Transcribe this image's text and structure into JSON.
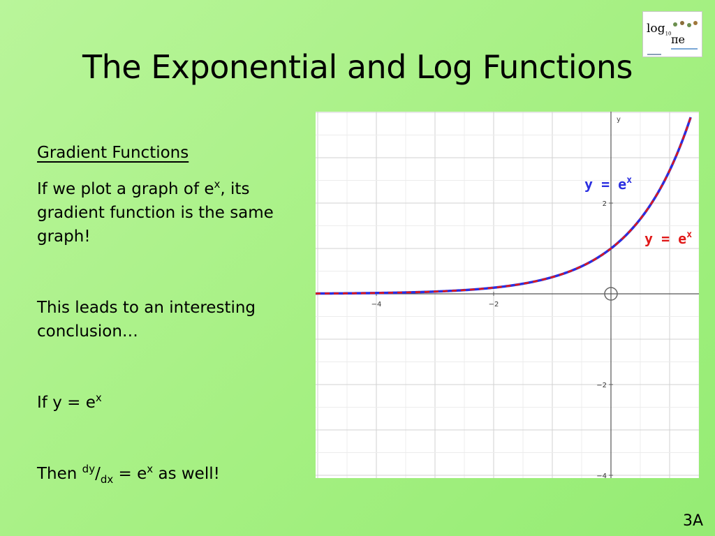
{
  "slide": {
    "title": "The Exponential and Log Functions",
    "page_number": "3A"
  },
  "logo": {
    "log_text": "log",
    "log_base": "10",
    "pi_e_text": "πe"
  },
  "content": {
    "heading": "Gradient Functions",
    "para1": {
      "before": "If we plot a graph of e",
      "sup": "x",
      "after": ", its gradient function is the same graph!"
    },
    "para2": "This leads to an interesting conclusion…",
    "para3": {
      "before": "If y = e",
      "sup": "x"
    },
    "para4": {
      "then": "Then ",
      "num": "dy",
      "slash": "/",
      "den": "dx",
      "mid": " = e",
      "sup": "x",
      "after": " as well!"
    }
  },
  "graph": {
    "y_axis_label": "y",
    "x_ticks": [
      "−4",
      "−2"
    ],
    "y_ticks": [
      "2",
      "−2",
      "−4"
    ],
    "curve_label_blue": {
      "prefix": "y = e",
      "sup": "x",
      "color": "#2a2ee0"
    },
    "curve_label_red": {
      "prefix": "y = e",
      "sup": "x",
      "color": "#e01818"
    }
  },
  "chart_data": {
    "type": "line",
    "series": [
      {
        "function": "e^x",
        "color": "#2a2ee0",
        "style": "solid"
      },
      {
        "function": "e^x",
        "color": "#e01818",
        "style": "dashed"
      }
    ],
    "xlim": [
      -5,
      1.5
    ],
    "ylim": [
      -4.4,
      3
    ],
    "x_ticks": [
      -4,
      -2
    ],
    "y_ticks": [
      2,
      -2,
      -4
    ],
    "grid": true
  }
}
